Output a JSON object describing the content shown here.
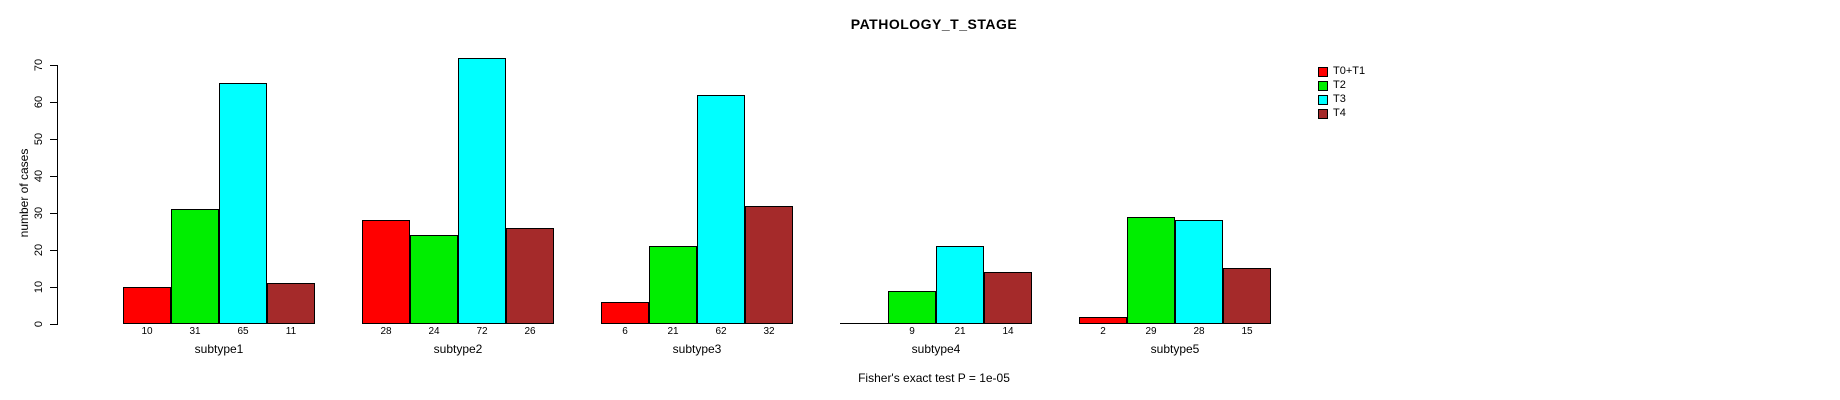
{
  "title": "PATHOLOGY_T_STAGE",
  "chart_data": {
    "type": "bar",
    "title": "PATHOLOGY_T_STAGE",
    "xlabel": "",
    "ylabel": "number of cases",
    "ylim": [
      0,
      70
    ],
    "yticks": [
      0,
      10,
      20,
      30,
      40,
      50,
      60,
      70
    ],
    "grid": false,
    "legend_position": "right",
    "categories": [
      "subtype1",
      "subtype2",
      "subtype3",
      "subtype4",
      "subtype5"
    ],
    "series": [
      {
        "name": "T0+T1",
        "color": "#FF0000",
        "values": [
          10,
          28,
          6,
          0,
          2
        ]
      },
      {
        "name": "T2",
        "color": "#00EE00",
        "values": [
          31,
          24,
          21,
          9,
          29
        ]
      },
      {
        "name": "T3",
        "color": "#00FFFF",
        "values": [
          65,
          72,
          62,
          21,
          28
        ]
      },
      {
        "name": "T4",
        "color": "#A52A2A",
        "values": [
          11,
          26,
          32,
          14,
          15
        ]
      }
    ],
    "bar_labels": [
      [
        "10",
        "31",
        "65",
        "11"
      ],
      [
        "28",
        "24",
        "72",
        "26"
      ],
      [
        "6",
        "21",
        "62",
        "32"
      ],
      [
        "",
        "9",
        "21",
        "14"
      ],
      [
        "2",
        "29",
        "28",
        "15"
      ]
    ],
    "annotation": "Fisher's exact test P = 1e-05"
  },
  "legend": {
    "items": [
      {
        "label": "T0+T1",
        "color": "#FF0000"
      },
      {
        "label": "T2",
        "color": "#00EE00"
      },
      {
        "label": "T3",
        "color": "#00FFFF"
      },
      {
        "label": "T4",
        "color": "#A52A2A"
      }
    ]
  }
}
